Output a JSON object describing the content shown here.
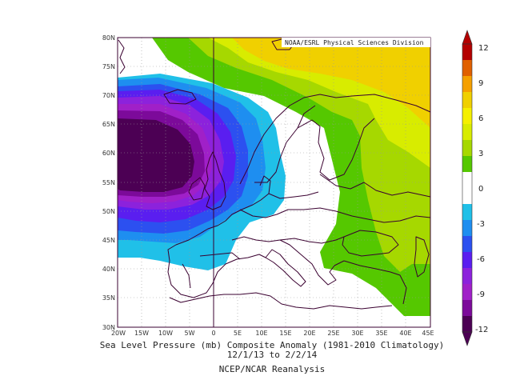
{
  "credit": "NOAA/ESRL Physical Sciences Division",
  "title": "Sea Level Pressure (mb) Composite Anomaly (1981-2010 Climatology)",
  "date_range": "12/1/13   to 2/2/14",
  "source": "NCEP/NCAR Reanalysis",
  "lat_labels": [
    "80N",
    "75N",
    "70N",
    "65N",
    "60N",
    "55N",
    "50N",
    "45N",
    "40N",
    "35N",
    "30N"
  ],
  "lon_labels": [
    "20W",
    "15W",
    "10W",
    "5W",
    "0",
    "5E",
    "10E",
    "15E",
    "20E",
    "25E",
    "30E",
    "35E",
    "40E",
    "45E"
  ],
  "colorbar": {
    "ticks": [
      "12",
      "9",
      "6",
      "3",
      "0",
      "-3",
      "-6",
      "-9",
      "-12"
    ],
    "colors": [
      "#b40000",
      "#e06000",
      "#f5a000",
      "#f0d000",
      "#f5f000",
      "#d8ec00",
      "#a6d800",
      "#55c800",
      "#ffffff",
      "#ffffff",
      "#20c0e8",
      "#1e8ef0",
      "#2c50f0",
      "#5a1ef0",
      "#8c22dc",
      "#a020c8",
      "#7c0a9a",
      "#4c0054"
    ]
  }
}
